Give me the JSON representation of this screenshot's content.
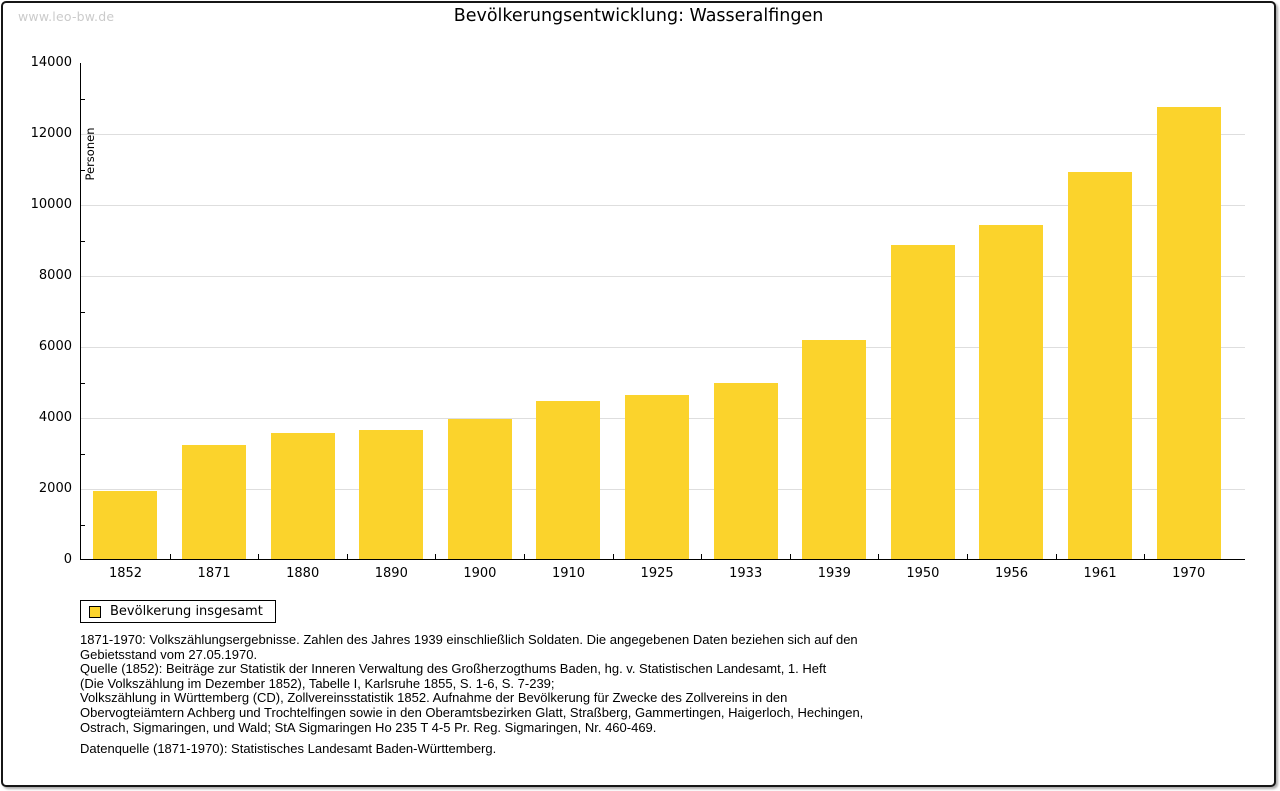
{
  "watermark": "www.leo-bw.de",
  "title": "Bevölkerungsentwicklung: Wasseralfingen",
  "colors": {
    "bar": "#fbd32c",
    "gridline": "#dedede",
    "axis": "#000000",
    "watermark": "#cbcbcb",
    "frame_border": "#161616",
    "background": "#ffffff"
  },
  "legend": {
    "label": "Bevölkerung insgesamt",
    "swatch_icon": "yellow-square-swatch"
  },
  "chart_data": {
    "type": "bar",
    "title": "Bevölkerungsentwicklung: Wasseralfingen",
    "xlabel": "",
    "ylabel": "Personen",
    "categories": [
      "1852",
      "1871",
      "1880",
      "1890",
      "1900",
      "1910",
      "1925",
      "1933",
      "1939",
      "1950",
      "1956",
      "1961",
      "1970"
    ],
    "values": [
      1920,
      3215,
      3540,
      3630,
      3940,
      4445,
      4610,
      4960,
      6170,
      8850,
      9400,
      10910,
      12730
    ],
    "series_name": "Bevölkerung insgesamt",
    "ylim": [
      0,
      14000
    ],
    "yticks": [
      0,
      2000,
      4000,
      6000,
      8000,
      10000,
      12000,
      14000
    ],
    "ytick_step": 2000,
    "minor_tick_step": 1000,
    "grid": true,
    "bar_color": "#fbd32c",
    "legend_position": "bottom-left"
  },
  "footnotes": {
    "block1": [
      "1871-1970: Volkszählungsergebnisse. Zahlen des Jahres 1939 einschließlich Soldaten. Die angegebenen Daten beziehen sich auf den",
      "Gebietsstand vom 27.05.1970.",
      "Quelle (1852): Beiträge zur Statistik der Inneren Verwaltung des Großherzogthums Baden, hg. v. Statistischen Landesamt, 1. Heft",
      "(Die Volkszählung im Dezember 1852), Tabelle I, Karlsruhe 1855, S. 1-6, S. 7-239;",
      "Volkszählung in Württemberg (CD), Zollvereinsstatistik 1852. Aufnahme der Bevölkerung für Zwecke des Zollvereins in den",
      "Obervogteiämtern Achberg und Trochtelfingen sowie in den Oberamtsbezirken Glatt, Straßberg, Gammertingen, Haigerloch, Hechingen,",
      "Ostrach, Sigmaringen, und Wald; StA Sigmaringen Ho 235 T 4-5 Pr. Reg. Sigmaringen, Nr. 460-469."
    ],
    "block2": [
      "Datenquelle (1871-1970): Statistisches Landesamt Baden-Württemberg."
    ]
  }
}
